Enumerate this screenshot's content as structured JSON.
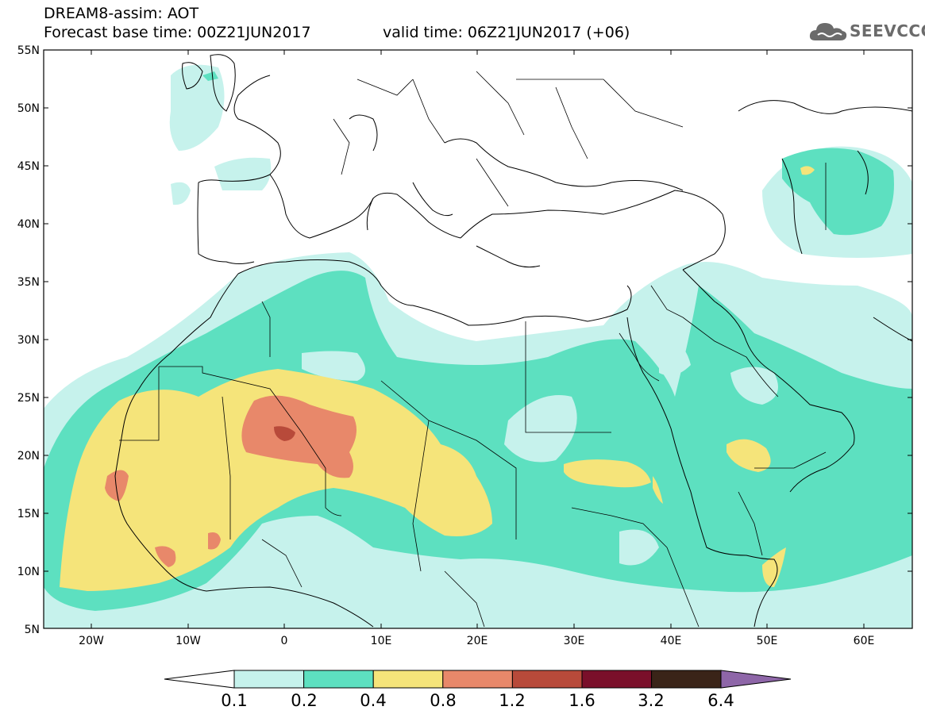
{
  "header": {
    "title": "DREAM8-assim: AOT",
    "base_time": "Forecast base time: 00Z21JUN2017",
    "valid_time": "valid time: 06Z21JUN2017 (+06)"
  },
  "logo": {
    "text": "SEEVCCC"
  },
  "map": {
    "lat_labels": [
      "55N",
      "50N",
      "45N",
      "40N",
      "35N",
      "30N",
      "25N",
      "20N",
      "15N",
      "10N",
      "5N"
    ],
    "lon_labels": [
      "20W",
      "10W",
      "0",
      "10E",
      "20E",
      "30E",
      "40E",
      "50E",
      "60E"
    ],
    "colors": {
      "c01": "#c6f2ec",
      "c02": "#5de0c0",
      "c04": "#f5e47a",
      "c08": "#e8886a",
      "c12": "#b84a3a",
      "c16": "#7a0f2a",
      "c32": "#3a2418",
      "c64": "#8e66a8"
    }
  },
  "colorbar": {
    "labels": [
      "0.1",
      "0.2",
      "0.4",
      "0.8",
      "1.2",
      "1.6",
      "3.2",
      "6.4"
    ],
    "colors": [
      "#c6f2ec",
      "#5de0c0",
      "#f5e47a",
      "#e8886a",
      "#b84a3a",
      "#7a0f2a",
      "#3a2418"
    ],
    "over_color": "#8e66a8"
  }
}
